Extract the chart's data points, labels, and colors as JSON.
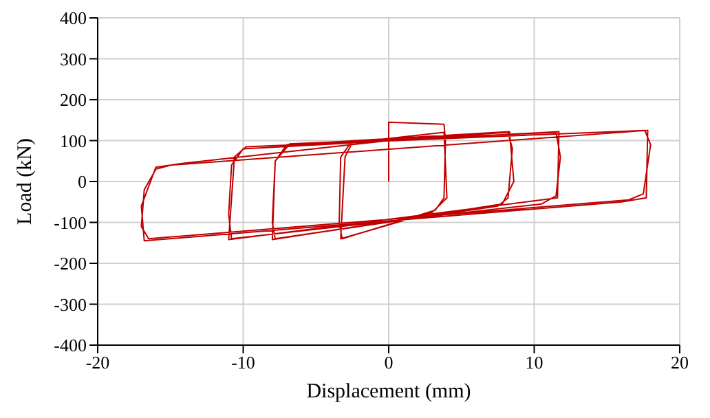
{
  "chart_data": {
    "type": "line",
    "xlabel": "Displacement (mm)",
    "ylabel": "Load (kN)",
    "xlim": [
      -20,
      20
    ],
    "xticks": [
      -20,
      -10,
      0,
      10,
      20
    ],
    "ylim": [
      -400,
      400
    ],
    "yticks": [
      -400,
      -300,
      -200,
      -100,
      0,
      100,
      200,
      300,
      400
    ],
    "grid": true,
    "marker": "none",
    "line_style": "solid",
    "series": [
      {
        "color": "#c00000",
        "x": [
          0,
          0,
          3.8,
          3.9,
          3.8,
          3.2,
          -3.2,
          -3.4,
          -3.3,
          -2.6,
          3.8,
          4.0,
          3.0,
          -3.3,
          -3,
          -2.5,
          8.2,
          8.5,
          8.2,
          7.5,
          -7.8,
          -8,
          -7.8,
          -7,
          8.3,
          8.6,
          7.8,
          -8,
          -7.8,
          -6.8,
          11.5,
          11.8,
          11.5,
          10.5,
          -10.8,
          -11,
          -10.8,
          -10,
          11.7,
          11.6,
          -11,
          -10.6,
          -9.8,
          17.6,
          18,
          17.5,
          16.5,
          -16.5,
          -17,
          -16.8,
          -16,
          -15,
          17.8,
          17.7,
          16,
          -16.8,
          -17,
          -16,
          -14,
          0
        ],
        "values": [
          0,
          145,
          140,
          100,
          -40,
          -70,
          -140,
          -100,
          60,
          95,
          120,
          -40,
          -75,
          -140,
          60,
          95,
          120,
          80,
          -40,
          -60,
          -140,
          -100,
          50,
          90,
          122,
          0,
          -55,
          -142,
          50,
          92,
          120,
          60,
          -35,
          -55,
          -140,
          -80,
          40,
          80,
          122,
          -40,
          -142,
          60,
          85,
          125,
          90,
          -30,
          -45,
          -140,
          -110,
          -20,
          30,
          40,
          125,
          -40,
          -50,
          -145,
          -60,
          35,
          45,
          100
        ]
      }
    ]
  }
}
